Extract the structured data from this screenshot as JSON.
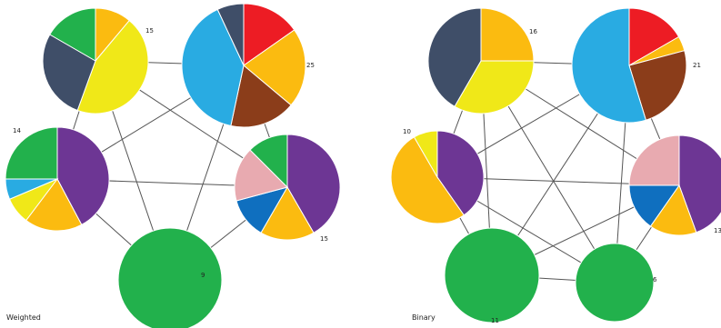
{
  "colors": {
    "red": "#ed1c24",
    "orange": "#fbbb10",
    "yellow": "#f0e818",
    "brown": "#8b3d1a",
    "slate": "#3f4e68",
    "skyblue": "#29abe2",
    "blue": "#0f6fbf",
    "purple": "#6d3694",
    "green": "#22b14c",
    "pink": "#e8aab0"
  },
  "panels": [
    {
      "caption": "Weighted",
      "nodes": [
        {
          "id": "a",
          "label": "15",
          "slices": [
            {
              "color": "orange",
              "value": 40
            },
            {
              "color": "yellow",
              "value": 160
            },
            {
              "color": "slate",
              "value": 100
            },
            {
              "color": "green",
              "value": 60
            }
          ]
        },
        {
          "id": "b",
          "label": "25",
          "slices": [
            {
              "color": "red",
              "value": 55
            },
            {
              "color": "orange",
              "value": 75
            },
            {
              "color": "brown",
              "value": 62
            },
            {
              "color": "skyblue",
              "value": 143
            },
            {
              "color": "slate",
              "value": 25
            }
          ]
        },
        {
          "id": "c",
          "label": "14",
          "slices": [
            {
              "color": "purple",
              "value": 152
            },
            {
              "color": "orange",
              "value": 65
            },
            {
              "color": "yellow",
              "value": 30
            },
            {
              "color": "skyblue",
              "value": 23
            },
            {
              "color": "green",
              "value": 90
            }
          ]
        },
        {
          "id": "d",
          "label": "15",
          "slices": [
            {
              "color": "purple",
              "value": 150
            },
            {
              "color": "orange",
              "value": 60
            },
            {
              "color": "blue",
              "value": 45
            },
            {
              "color": "pink",
              "value": 60
            },
            {
              "color": "green",
              "value": 45
            }
          ]
        },
        {
          "id": "e",
          "label": "9",
          "slices": [
            {
              "color": "green",
              "value": 360
            }
          ]
        }
      ],
      "edges": [
        [
          "a",
          "b"
        ],
        [
          "a",
          "c"
        ],
        [
          "a",
          "d"
        ],
        [
          "a",
          "e"
        ],
        [
          "b",
          "c"
        ],
        [
          "b",
          "d"
        ],
        [
          "b",
          "e"
        ],
        [
          "c",
          "d"
        ],
        [
          "c",
          "e"
        ],
        [
          "d",
          "e"
        ]
      ]
    },
    {
      "caption": "Binary",
      "nodes": [
        {
          "id": "a",
          "label": "16",
          "slices": [
            {
              "color": "orange",
              "value": 90
            },
            {
              "color": "yellow",
              "value": 120
            },
            {
              "color": "slate",
              "value": 150
            }
          ]
        },
        {
          "id": "b",
          "label": "21",
          "slices": [
            {
              "color": "red",
              "value": 60
            },
            {
              "color": "orange",
              "value": 15
            },
            {
              "color": "brown",
              "value": 88
            },
            {
              "color": "skyblue",
              "value": 197
            }
          ]
        },
        {
          "id": "c",
          "label": "10",
          "slices": [
            {
              "color": "purple",
              "value": 145
            },
            {
              "color": "orange",
              "value": 185
            },
            {
              "color": "yellow",
              "value": 30
            }
          ]
        },
        {
          "id": "d",
          "label": "13",
          "slices": [
            {
              "color": "purple",
              "value": 160
            },
            {
              "color": "orange",
              "value": 55
            },
            {
              "color": "blue",
              "value": 55
            },
            {
              "color": "pink",
              "value": 90
            }
          ]
        },
        {
          "id": "e",
          "label": "11",
          "slices": [
            {
              "color": "green",
              "value": 360
            }
          ]
        },
        {
          "id": "f",
          "label": "6",
          "slices": [
            {
              "color": "green",
              "value": 360
            }
          ]
        }
      ],
      "edges": [
        [
          "a",
          "b"
        ],
        [
          "a",
          "c"
        ],
        [
          "a",
          "d"
        ],
        [
          "a",
          "e"
        ],
        [
          "a",
          "f"
        ],
        [
          "b",
          "c"
        ],
        [
          "b",
          "d"
        ],
        [
          "b",
          "e"
        ],
        [
          "b",
          "f"
        ],
        [
          "c",
          "d"
        ],
        [
          "c",
          "e"
        ],
        [
          "c",
          "f"
        ],
        [
          "d",
          "e"
        ],
        [
          "d",
          "f"
        ],
        [
          "e",
          "f"
        ]
      ]
    }
  ]
}
